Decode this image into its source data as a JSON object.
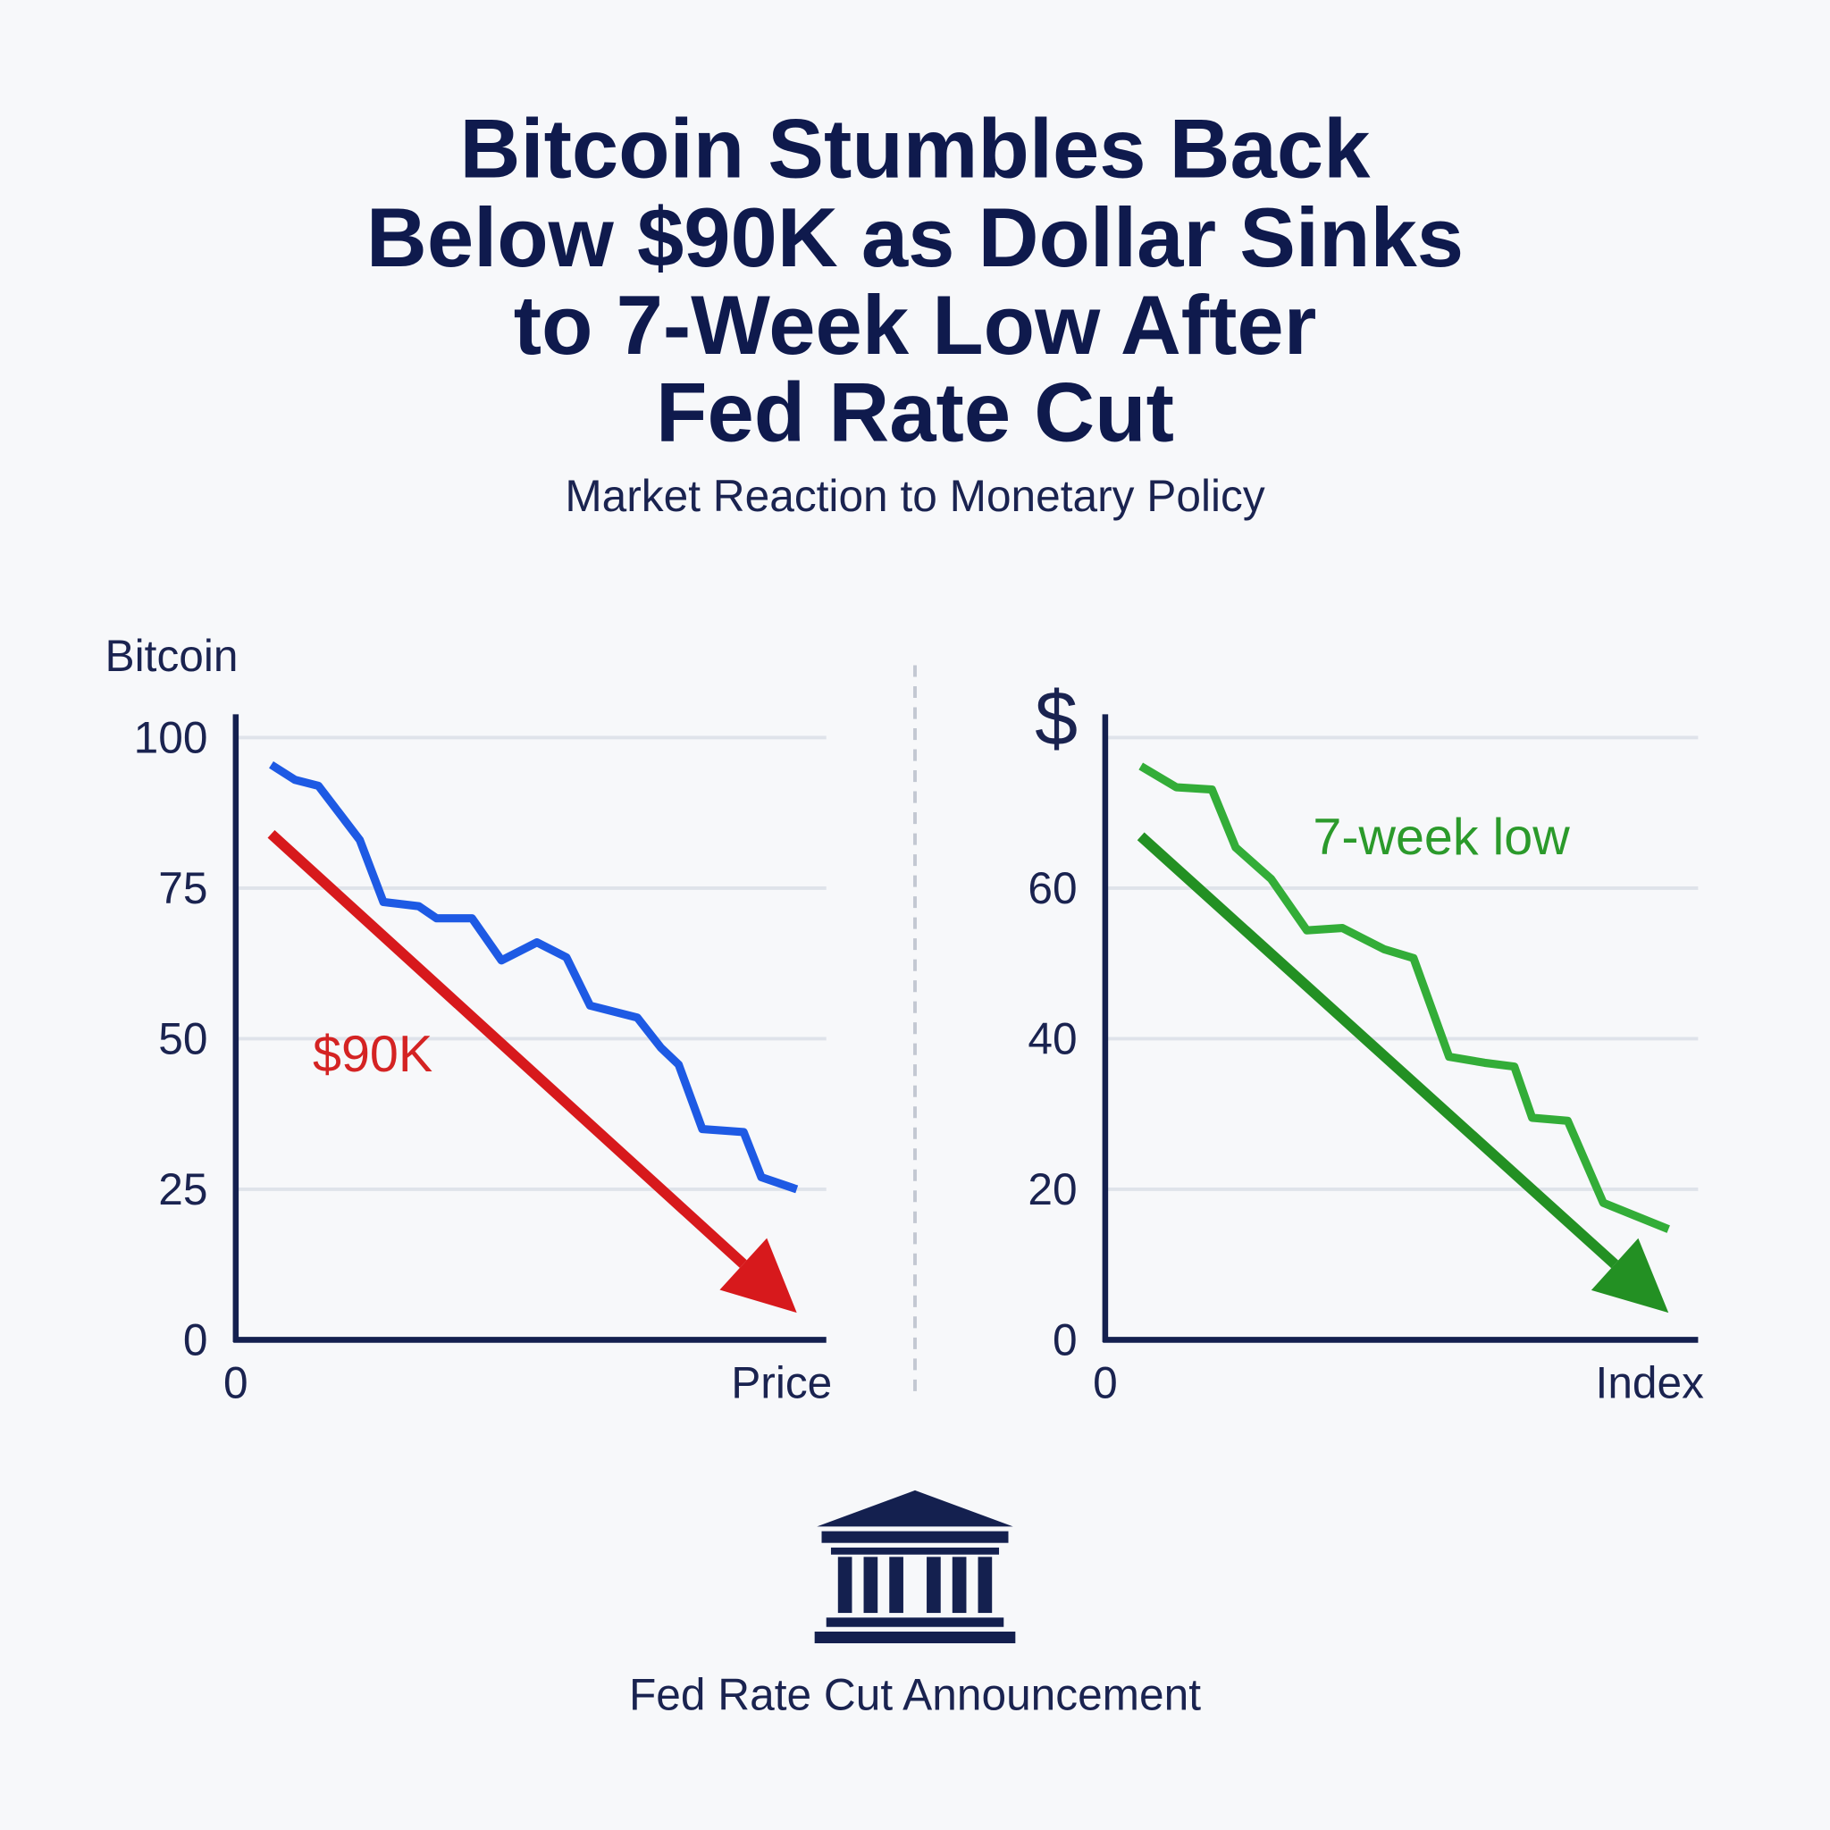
{
  "header": {
    "title": [
      "Bitcoin Stumbles Back",
      "Below $90K as Dollar Sinks",
      "to 7-Week Low After",
      "Fed Rate Cut"
    ],
    "subtitle": "Market Reaction to Monetary Policy"
  },
  "chart_data": [
    {
      "type": "line",
      "y_label": "Bitcoin",
      "x_label": "Price",
      "annotation": "$90K",
      "annotation_color": "#d42323",
      "xlim": [
        0,
        100
      ],
      "xticks": [
        0
      ],
      "ylim": [
        0,
        100
      ],
      "yticks": [
        0,
        25,
        50,
        75,
        100
      ],
      "grid": true,
      "color": "#1e5ae4",
      "x": [
        6,
        10,
        14,
        21,
        25,
        31,
        34,
        40,
        45,
        51,
        56,
        60,
        68,
        72,
        75,
        79,
        86,
        89,
        95
      ],
      "values": [
        95.5,
        93,
        92,
        83,
        72.7,
        72,
        70,
        70,
        63,
        66,
        63.5,
        55.5,
        53.5,
        48.5,
        45.7,
        35,
        34.5,
        27,
        25
      ],
      "arrow": {
        "x": [
          6,
          95
        ],
        "values": [
          84,
          4.5
        ],
        "color": "#d7191c"
      }
    },
    {
      "type": "line",
      "y_label": "$",
      "x_label": "Index",
      "annotation": "7-week low",
      "annotation_color": "#2b9a2b",
      "xlim": [
        0,
        100
      ],
      "xticks": [
        0
      ],
      "ylim": [
        0,
        80
      ],
      "yticks": [
        0,
        20,
        40,
        60
      ],
      "grid": true,
      "color": "#33ad38",
      "x": [
        6,
        12,
        18,
        22,
        28,
        34,
        40,
        47,
        52,
        58,
        64,
        69,
        72,
        78,
        84,
        95
      ],
      "values": [
        76.2,
        73.4,
        73.1,
        65.4,
        61.2,
        54.4,
        54.7,
        51.9,
        50.7,
        37.6,
        36.8,
        36.3,
        29.5,
        29.1,
        18.2,
        14.7
      ],
      "arrow": {
        "x": [
          6,
          95
        ],
        "values": [
          66.9,
          3.6
        ],
        "color": "#239023"
      }
    }
  ],
  "footer": {
    "caption": "Fed Rate Cut Announcement"
  }
}
